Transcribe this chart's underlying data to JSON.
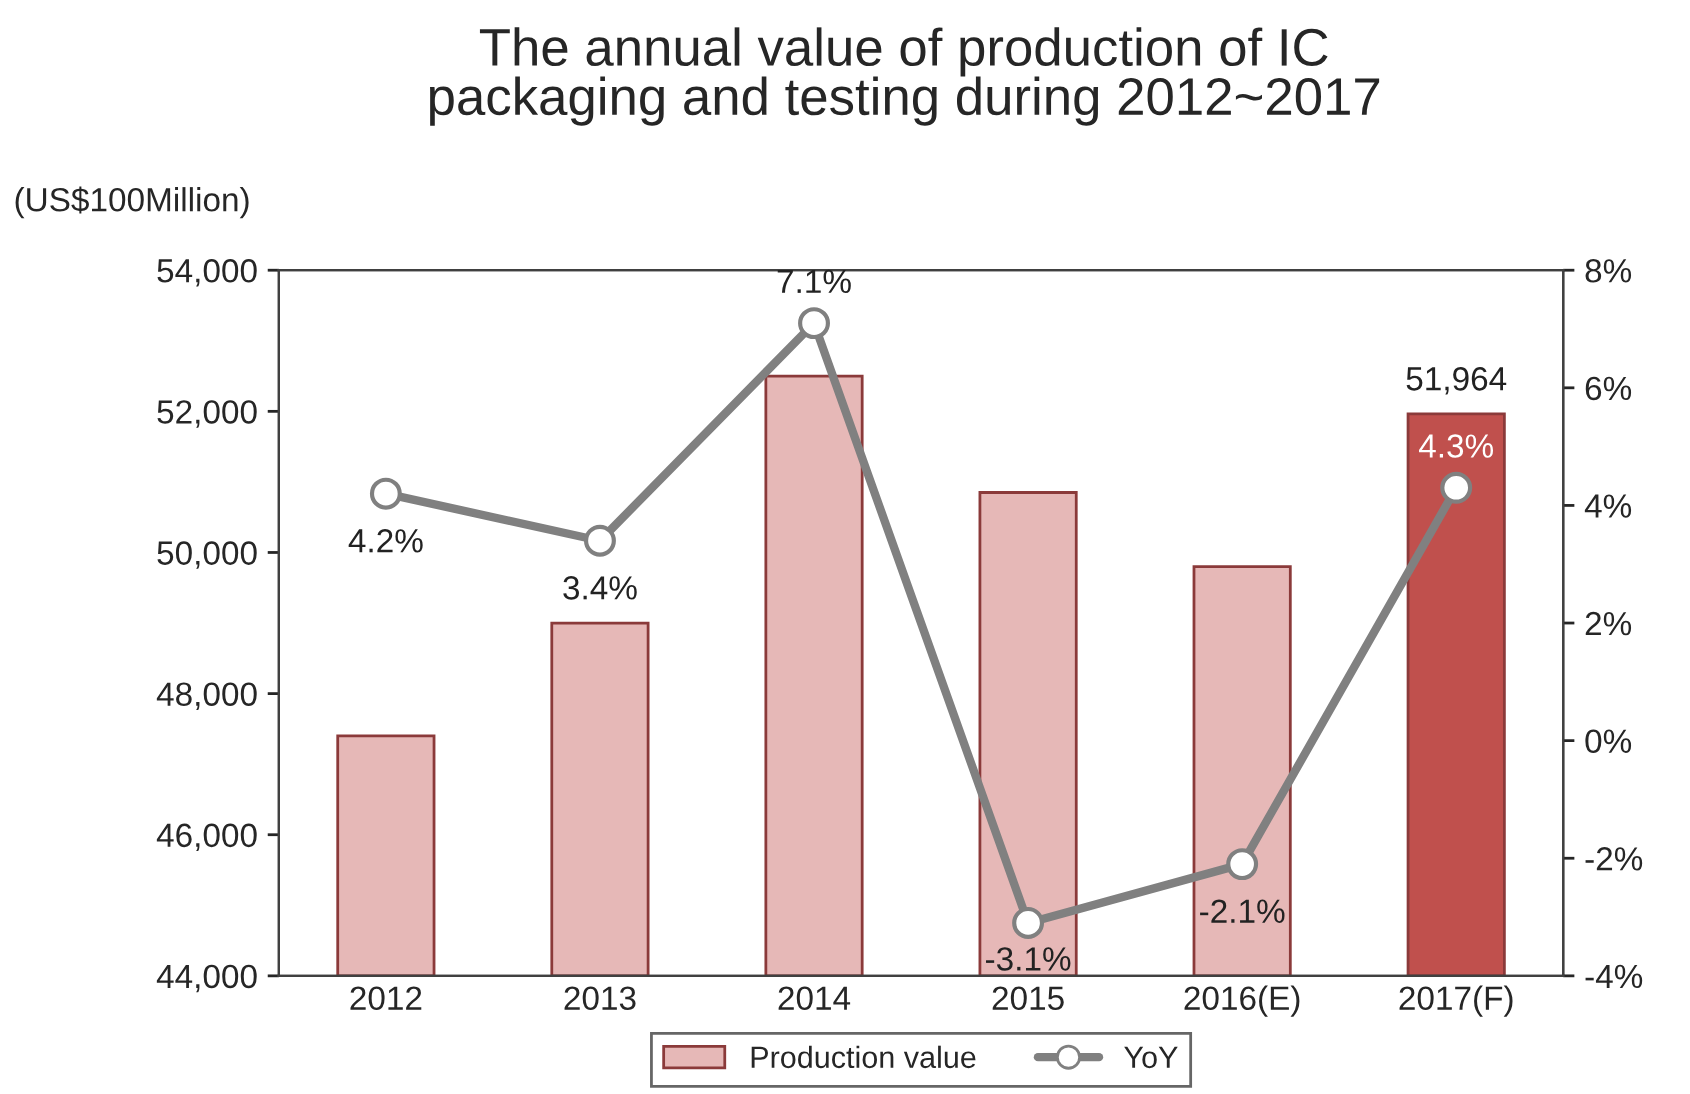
{
  "chart_data": {
    "type": "bar",
    "title": "The annual value of production of IC\npackaging and testing during 2012~2017",
    "ylabel": "(US$100Million)",
    "categories": [
      "2012",
      "2013",
      "2014",
      "2015",
      "2016(E)",
      "2017(F)"
    ],
    "series": [
      {
        "name": "Production value",
        "colors": [
          "#e6b8b7",
          "#e6b8b7",
          "#e6b8b7",
          "#e6b8b7",
          "#e6b8b7",
          "#c0504d"
        ],
        "color": "#e6b8b7",
        "values": [
          47400,
          49000,
          52500,
          50850,
          49800,
          51964
        ],
        "value_labels": [
          null,
          null,
          null,
          null,
          null,
          "51,964"
        ]
      },
      {
        "name": "YoY",
        "type": "line",
        "axis": "y2",
        "color": "#808080",
        "values": [
          4.2,
          3.4,
          7.1,
          -3.1,
          -2.1,
          4.3
        ],
        "value_labels": [
          "4.2%",
          "3.4%",
          "7.1%",
          "-3.1%",
          "-2.1%",
          "4.3%"
        ],
        "marker": "circle"
      }
    ],
    "ylim": [
      44000,
      54000
    ],
    "yticks": [
      {
        "value": 44000,
        "label": "44,000"
      },
      {
        "value": 46000,
        "label": "46,000"
      },
      {
        "value": 48000,
        "label": "48,000"
      },
      {
        "value": 50000,
        "label": "50,000"
      },
      {
        "value": 52000,
        "label": "52,000"
      },
      {
        "value": 54000,
        "label": "54,000"
      }
    ],
    "y2lim": [
      -4,
      8
    ],
    "y2ticks": [
      {
        "value": -4,
        "label": "-4%"
      },
      {
        "value": -2,
        "label": "-2%"
      },
      {
        "value": 0,
        "label": "0%"
      },
      {
        "value": 2,
        "label": "2%"
      },
      {
        "value": 4,
        "label": "4%"
      },
      {
        "value": 6,
        "label": "6%"
      },
      {
        "value": 8,
        "label": "8%"
      }
    ],
    "grid": false,
    "legend": "bottom"
  }
}
